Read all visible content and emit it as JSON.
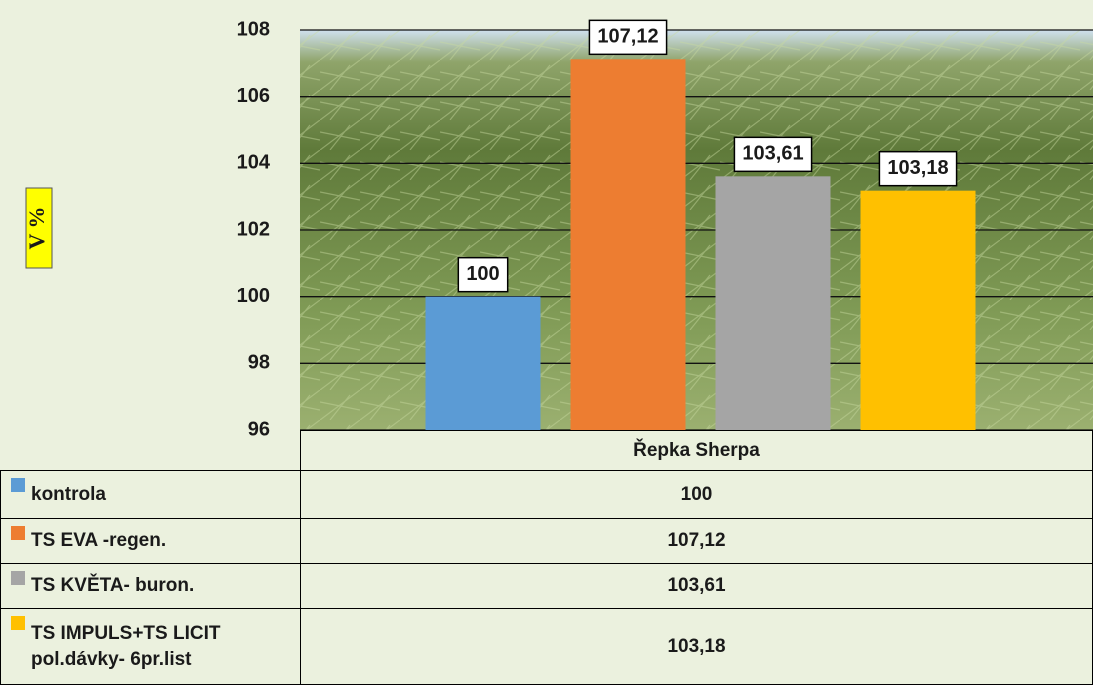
{
  "chart_data": {
    "type": "bar",
    "y_label": "V %",
    "categories": [
      "Řepka Sherpa"
    ],
    "series": [
      {
        "name": "kontrola",
        "color": "#5b9bd5",
        "values": [
          100
        ],
        "value_labels": [
          "100"
        ]
      },
      {
        "name": "TS EVA -regen.",
        "color": "#ed7d31",
        "values": [
          107.12
        ],
        "value_labels": [
          "107,12"
        ]
      },
      {
        "name": "TS KVĚTA- buron.",
        "color": "#a5a5a5",
        "values": [
          103.61
        ],
        "value_labels": [
          "103,61"
        ]
      },
      {
        "name": "TS IMPULS+TS LICIT pol.dávky- 6pr.list",
        "color": "#ffc000",
        "values": [
          103.18
        ],
        "value_labels": [
          "103,18"
        ]
      }
    ],
    "ylim": [
      96,
      108
    ],
    "yticks": [
      96,
      98,
      100,
      102,
      104,
      106,
      108
    ],
    "grid": true
  }
}
